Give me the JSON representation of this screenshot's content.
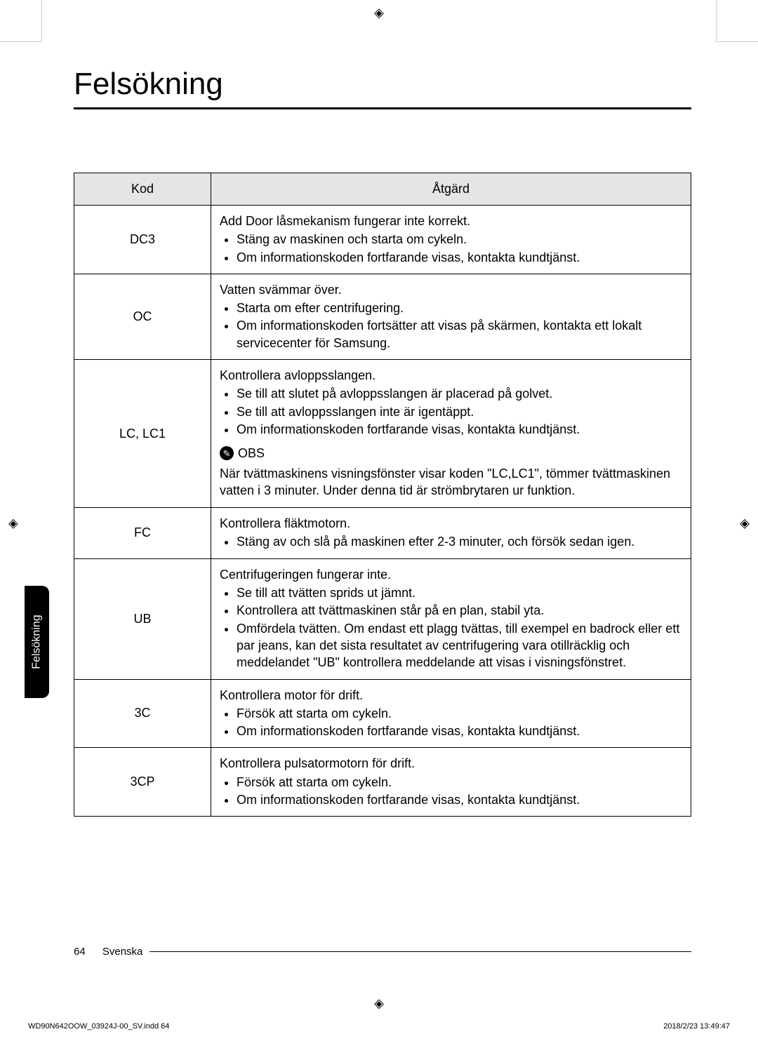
{
  "title": "Felsökning",
  "side_tab": "Felsökning",
  "table": {
    "header_code": "Kod",
    "header_action": "Åtgärd",
    "rows": [
      {
        "code": "DC3",
        "lead": "Add Door låsmekanism fungerar inte korrekt.",
        "bullets": [
          "Stäng av maskinen och starta om cykeln.",
          "Om informationskoden fortfarande visas, kontakta kundtjänst."
        ]
      },
      {
        "code": "OC",
        "lead": "Vatten svämmar över.",
        "bullets": [
          "Starta om efter centrifugering.",
          "Om informationskoden fortsätter att visas på skärmen, kontakta ett lokalt servicecenter för Samsung."
        ]
      },
      {
        "code": "LC, LC1",
        "lead": "Kontrollera avloppsslangen.",
        "bullets": [
          "Se till att slutet på avloppsslangen är placerad på golvet.",
          "Se till att avloppsslangen inte är igentäppt.",
          "Om informationskoden fortfarande visas, kontakta kundtjänst."
        ],
        "note_label": "OBS",
        "note_body": "När tvättmaskinens visningsfönster visar koden \"LC,LC1\", tömmer tvättmaskinen vatten i 3 minuter. Under denna tid är strömbrytaren ur funktion."
      },
      {
        "code": "FC",
        "lead": "Kontrollera fläktmotorn.",
        "bullets": [
          "Stäng av och slå på maskinen efter 2-3 minuter, och försök sedan igen."
        ]
      },
      {
        "code": "UB",
        "lead": "Centrifugeringen fungerar inte.",
        "bullets": [
          "Se till att tvätten sprids ut jämnt.",
          "Kontrollera att tvättmaskinen står på en plan, stabil yta.",
          "Omfördela tvätten. Om endast ett plagg tvättas, till exempel en badrock eller ett par jeans, kan det sista resultatet av centrifugering vara otillräcklig och meddelandet \"UB\" kontrollera meddelande att visas i visningsfönstret."
        ]
      },
      {
        "code": "3C",
        "lead": "Kontrollera motor för drift.",
        "bullets": [
          "Försök att starta om cykeln.",
          "Om informationskoden fortfarande visas, kontakta kundtjänst."
        ]
      },
      {
        "code": "3CP",
        "lead": "Kontrollera pulsatormotorn för drift.",
        "bullets": [
          "Försök att starta om cykeln.",
          "Om informationskoden fortfarande visas, kontakta kundtjänst."
        ]
      }
    ]
  },
  "footer": {
    "page_number": "64",
    "language": "Svenska",
    "print_file": "WD90N642OOW_03924J-00_SV.indd   64",
    "print_time": "2018/2/23   13:49:47"
  }
}
